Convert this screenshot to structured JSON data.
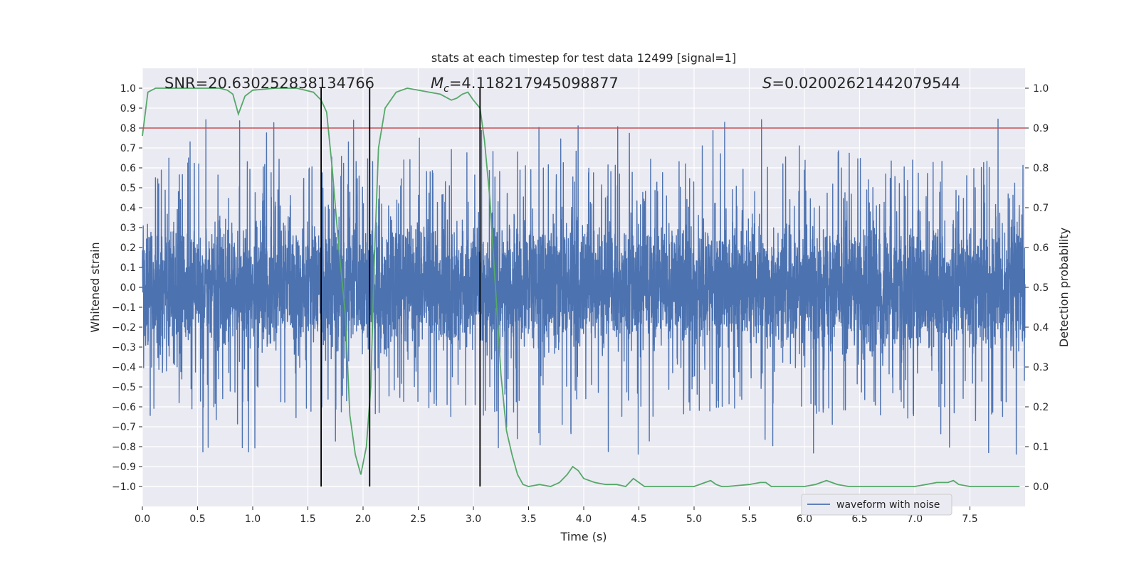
{
  "chart_data": {
    "type": "line",
    "title": "stats at each timestep for test data 12499 [signal=1]",
    "xlabel": "Time (s)",
    "ylabel": "Whitened strain",
    "y2label": "Detection probability",
    "xlim": [
      0.0,
      8.0
    ],
    "ylim": [
      -1.1,
      1.1
    ],
    "y2lim": [
      -0.05,
      1.05
    ],
    "xticks": [
      0.0,
      0.5,
      1.0,
      1.5,
      2.0,
      2.5,
      3.0,
      3.5,
      4.0,
      4.5,
      5.0,
      5.5,
      6.0,
      6.5,
      7.0,
      7.5
    ],
    "xtick_labels": [
      "0.0",
      "0.5",
      "1.0",
      "1.5",
      "2.0",
      "2.5",
      "3.0",
      "3.5",
      "4.0",
      "4.5",
      "5.0",
      "5.5",
      "6.0",
      "6.5",
      "7.0",
      "7.5"
    ],
    "yticks": [
      1.0,
      0.9,
      0.8,
      0.7,
      0.6,
      0.5,
      0.4,
      0.3,
      0.2,
      0.1,
      0.0,
      -0.1,
      -0.2,
      -0.3,
      -0.4,
      -0.5,
      -0.6,
      -0.7,
      -0.8,
      -0.9,
      -1.0
    ],
    "ytick_labels": [
      "1.0",
      "0.9",
      "0.8",
      "0.7",
      "0.6",
      "0.5",
      "0.4",
      "0.3",
      "0.2",
      "0.1",
      "0.0",
      "−0.1",
      "−0.2",
      "−0.3",
      "−0.4",
      "−0.5",
      "−0.6",
      "−0.7",
      "−0.8",
      "−0.9",
      "−1.0"
    ],
    "y2ticks": [
      1.0,
      0.9,
      0.8,
      0.7,
      0.6,
      0.5,
      0.4,
      0.3,
      0.2,
      0.1,
      0.0
    ],
    "y2tick_labels": [
      "1.0",
      "0.9",
      "0.8",
      "0.7",
      "0.6",
      "0.5",
      "0.4",
      "0.3",
      "0.2",
      "0.1",
      "0.0"
    ],
    "annotations": {
      "snr_label": "SNR=20.630252838134766",
      "mc_symbol": "M",
      "mc_subscript": "c",
      "mc_value": "=4.118217945098877",
      "s_symbol": "S",
      "s_value": "=0.02002621442079544"
    },
    "threshold": {
      "axis": "y2",
      "value": 0.9,
      "color": "#c44e52"
    },
    "vertical_lines": {
      "x": [
        1.62,
        2.06,
        3.06
      ],
      "y2_range": [
        0.0,
        1.0
      ],
      "color": "#000000"
    },
    "series": [
      {
        "name": "waveform with noise",
        "axis": "y",
        "color": "#4c72b0",
        "envelope": "dense whitened-strain noise, core band about ±0.4, spikes reaching about 0.97 and −1.0",
        "seed": 12499,
        "x_range": [
          0.0,
          8.0
        ]
      },
      {
        "name": "detection probability",
        "axis": "y2",
        "color": "#55a868",
        "x": [
          0.0,
          0.05,
          0.12,
          0.3,
          0.5,
          0.7,
          0.77,
          0.82,
          0.87,
          0.93,
          1.0,
          1.2,
          1.4,
          1.55,
          1.62,
          1.67,
          1.72,
          1.78,
          1.84,
          1.88,
          1.93,
          1.98,
          2.03,
          2.07,
          2.1,
          2.14,
          2.2,
          2.3,
          2.4,
          2.5,
          2.6,
          2.7,
          2.8,
          2.85,
          2.9,
          2.95,
          3.0,
          3.06,
          3.1,
          3.15,
          3.2,
          3.25,
          3.3,
          3.35,
          3.4,
          3.45,
          3.5,
          3.6,
          3.7,
          3.78,
          3.85,
          3.9,
          3.95,
          4.0,
          4.1,
          4.2,
          4.3,
          4.38,
          4.45,
          4.5,
          4.55,
          4.6,
          4.7,
          4.8,
          4.9,
          5.0,
          5.1,
          5.15,
          5.2,
          5.25,
          5.3,
          5.5,
          5.6,
          5.65,
          5.7,
          5.8,
          5.9,
          6.0,
          6.1,
          6.2,
          6.3,
          6.4,
          6.6,
          6.8,
          7.0,
          7.1,
          7.2,
          7.3,
          7.35,
          7.4,
          7.5,
          7.7,
          7.95
        ],
        "values": [
          0.88,
          0.99,
          1.0,
          1.0,
          1.0,
          1.0,
          0.995,
          0.985,
          0.935,
          0.98,
          0.995,
          1.0,
          1.0,
          0.99,
          0.97,
          0.94,
          0.8,
          0.6,
          0.43,
          0.18,
          0.08,
          0.03,
          0.1,
          0.25,
          0.55,
          0.85,
          0.95,
          0.99,
          1.0,
          0.995,
          0.99,
          0.985,
          0.97,
          0.975,
          0.985,
          0.99,
          0.97,
          0.95,
          0.87,
          0.72,
          0.5,
          0.28,
          0.14,
          0.08,
          0.03,
          0.005,
          0.0,
          0.005,
          0.0,
          0.01,
          0.03,
          0.05,
          0.04,
          0.02,
          0.01,
          0.005,
          0.005,
          0.0,
          0.02,
          0.01,
          0.0,
          0.0,
          0.0,
          0.0,
          0.0,
          0.0,
          0.01,
          0.015,
          0.005,
          0.0,
          0.0,
          0.005,
          0.01,
          0.01,
          0.0,
          0.0,
          0.0,
          0.0,
          0.005,
          0.015,
          0.005,
          0.0,
          0.0,
          0.0,
          0.0,
          0.005,
          0.01,
          0.01,
          0.015,
          0.005,
          0.0,
          0.0,
          0.0
        ]
      }
    ],
    "legend": {
      "entries": [
        "waveform with noise"
      ],
      "placement": "lower-right"
    },
    "grid": true,
    "background": "#eaeaf2"
  }
}
